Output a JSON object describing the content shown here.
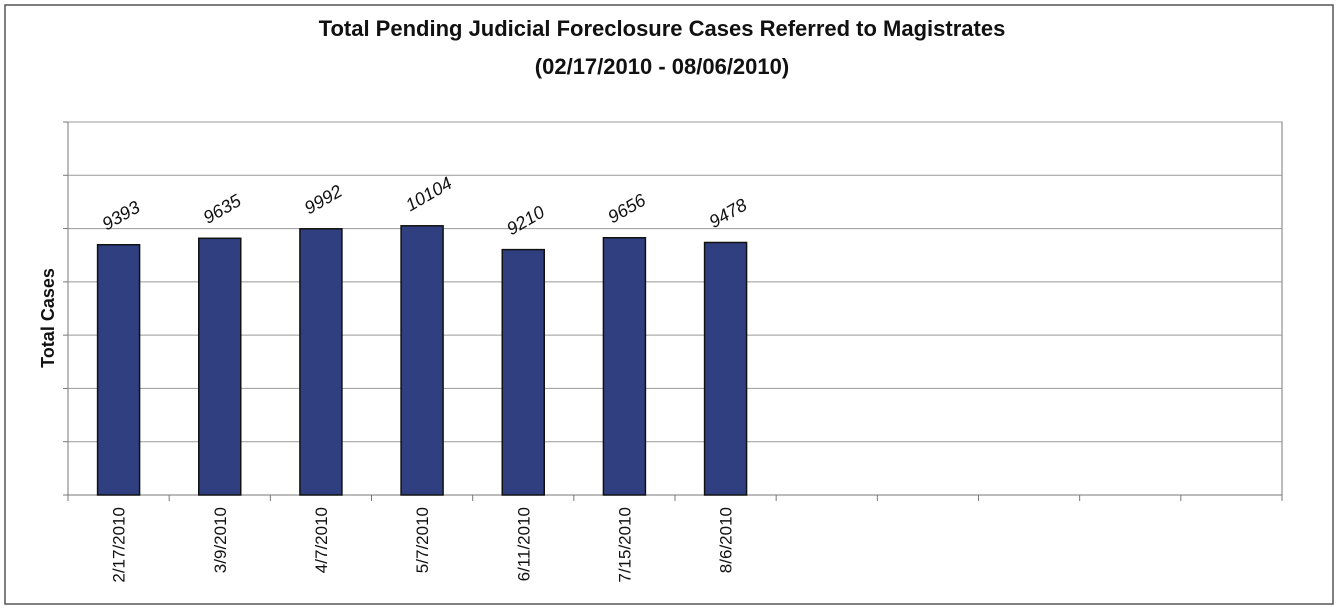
{
  "chart_data": {
    "type": "bar",
    "title": "Total Pending Judicial Foreclosure Cases Referred to Magistrates",
    "subtitle": "(02/17/2010 - 08/06/2010)",
    "y_label": "Total Cases",
    "categories": [
      "2/17/2010",
      "3/9/2010",
      "4/7/2010",
      "5/7/2010",
      "6/11/2010",
      "7/15/2010",
      "8/6/2010",
      null,
      null,
      null,
      null,
      null
    ],
    "values": [
      9393,
      9635,
      9992,
      10104,
      9210,
      9656,
      9478,
      null,
      null,
      null,
      null,
      null
    ],
    "color": "#2f3f80",
    "ylim": [
      0,
      14000
    ],
    "yticks": [
      0,
      2000,
      4000,
      6000,
      8000,
      10000,
      12000,
      14000
    ],
    "grid": true
  }
}
